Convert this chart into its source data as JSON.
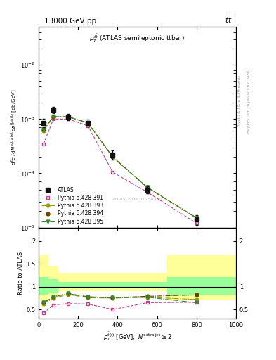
{
  "title_left": "13000 GeV pp",
  "title_right": "tt",
  "plot_title": "$p_T^{t\\bar{t}}$ (ATLAS semileptonic ttbar)",
  "ylabel_main": "$\\mathrm{d}^2\\sigma\\,/\\,\\mathrm{d}N^\\mathrm{extra\\,jet}\\,\\mathrm{d}p_T^\\mathrm{tbar(t)}$ [pb/GeV]",
  "ylabel_ratio": "Ratio to ATLAS",
  "xlabel": "$p_T^{\\bar{t}(t)}$ [GeV],  $N^{\\mathrm{extra\\,jet}} \\geq 2$",
  "watermark": "ATLAS_2019_I1750330",
  "rivet_label": "Rivet 3.1.10, ≥ 3.3M events",
  "mcplots_label": "mcplots.cern.ch [arXiv:1306.3436]",
  "x_centers": [
    25,
    75,
    150,
    250,
    375,
    550,
    800
  ],
  "x_edges": [
    0,
    50,
    100,
    200,
    300,
    450,
    650,
    1000
  ],
  "atlas_y": [
    0.00085,
    0.0015,
    0.0011,
    0.00085,
    0.00022,
    5e-05,
    1.4e-05
  ],
  "atlas_yerr": [
    0.00015,
    0.0002,
    0.00015,
    0.00012,
    4e-05,
    8e-06,
    3e-06
  ],
  "py391_y": [
    0.00035,
    0.001,
    0.001,
    0.00075,
    0.000105,
    4.5e-05,
    1.2e-05
  ],
  "py393_y": [
    0.0006,
    0.0011,
    0.0011,
    0.00085,
    0.0002,
    5.5e-05,
    1.5e-05
  ],
  "py394_y": [
    0.00065,
    0.0011,
    0.0011,
    0.00085,
    0.0002,
    5.5e-05,
    1.5e-05
  ],
  "py395_y": [
    0.00065,
    0.0011,
    0.0011,
    0.00085,
    0.0002,
    5.5e-05,
    1.5e-05
  ],
  "ratio_py391": [
    0.42,
    0.6,
    0.63,
    0.62,
    0.5,
    0.65,
    0.66
  ],
  "ratio_py393": [
    0.63,
    0.75,
    0.83,
    0.76,
    0.75,
    0.77,
    0.72
  ],
  "ratio_py394": [
    0.65,
    0.78,
    0.85,
    0.78,
    0.76,
    0.79,
    0.82
  ],
  "ratio_py395": [
    0.65,
    0.78,
    0.85,
    0.77,
    0.76,
    0.77,
    0.65
  ],
  "band_edges": [
    0,
    50,
    100,
    300,
    650,
    1000
  ],
  "band_yellow_lo": [
    0.7,
    0.78,
    0.9,
    0.9,
    0.7
  ],
  "band_yellow_hi": [
    1.7,
    1.45,
    1.3,
    1.3,
    1.7
  ],
  "band_green_lo": [
    0.82,
    0.88,
    0.97,
    0.97,
    0.82
  ],
  "band_green_hi": [
    1.22,
    1.17,
    1.1,
    1.1,
    1.22
  ],
  "color_atlas": "#111111",
  "color_py391": "#bb4488",
  "color_py393": "#999900",
  "color_py394": "#664400",
  "color_py395": "#338833",
  "color_yellow": "#ffff99",
  "color_green": "#99ff99",
  "xlim": [
    0,
    1000
  ],
  "ylim_main": [
    1e-05,
    0.05
  ],
  "ylim_ratio": [
    0.3,
    2.3
  ],
  "main_height_ratio": 2.2,
  "ratio_height_ratio": 1.0
}
